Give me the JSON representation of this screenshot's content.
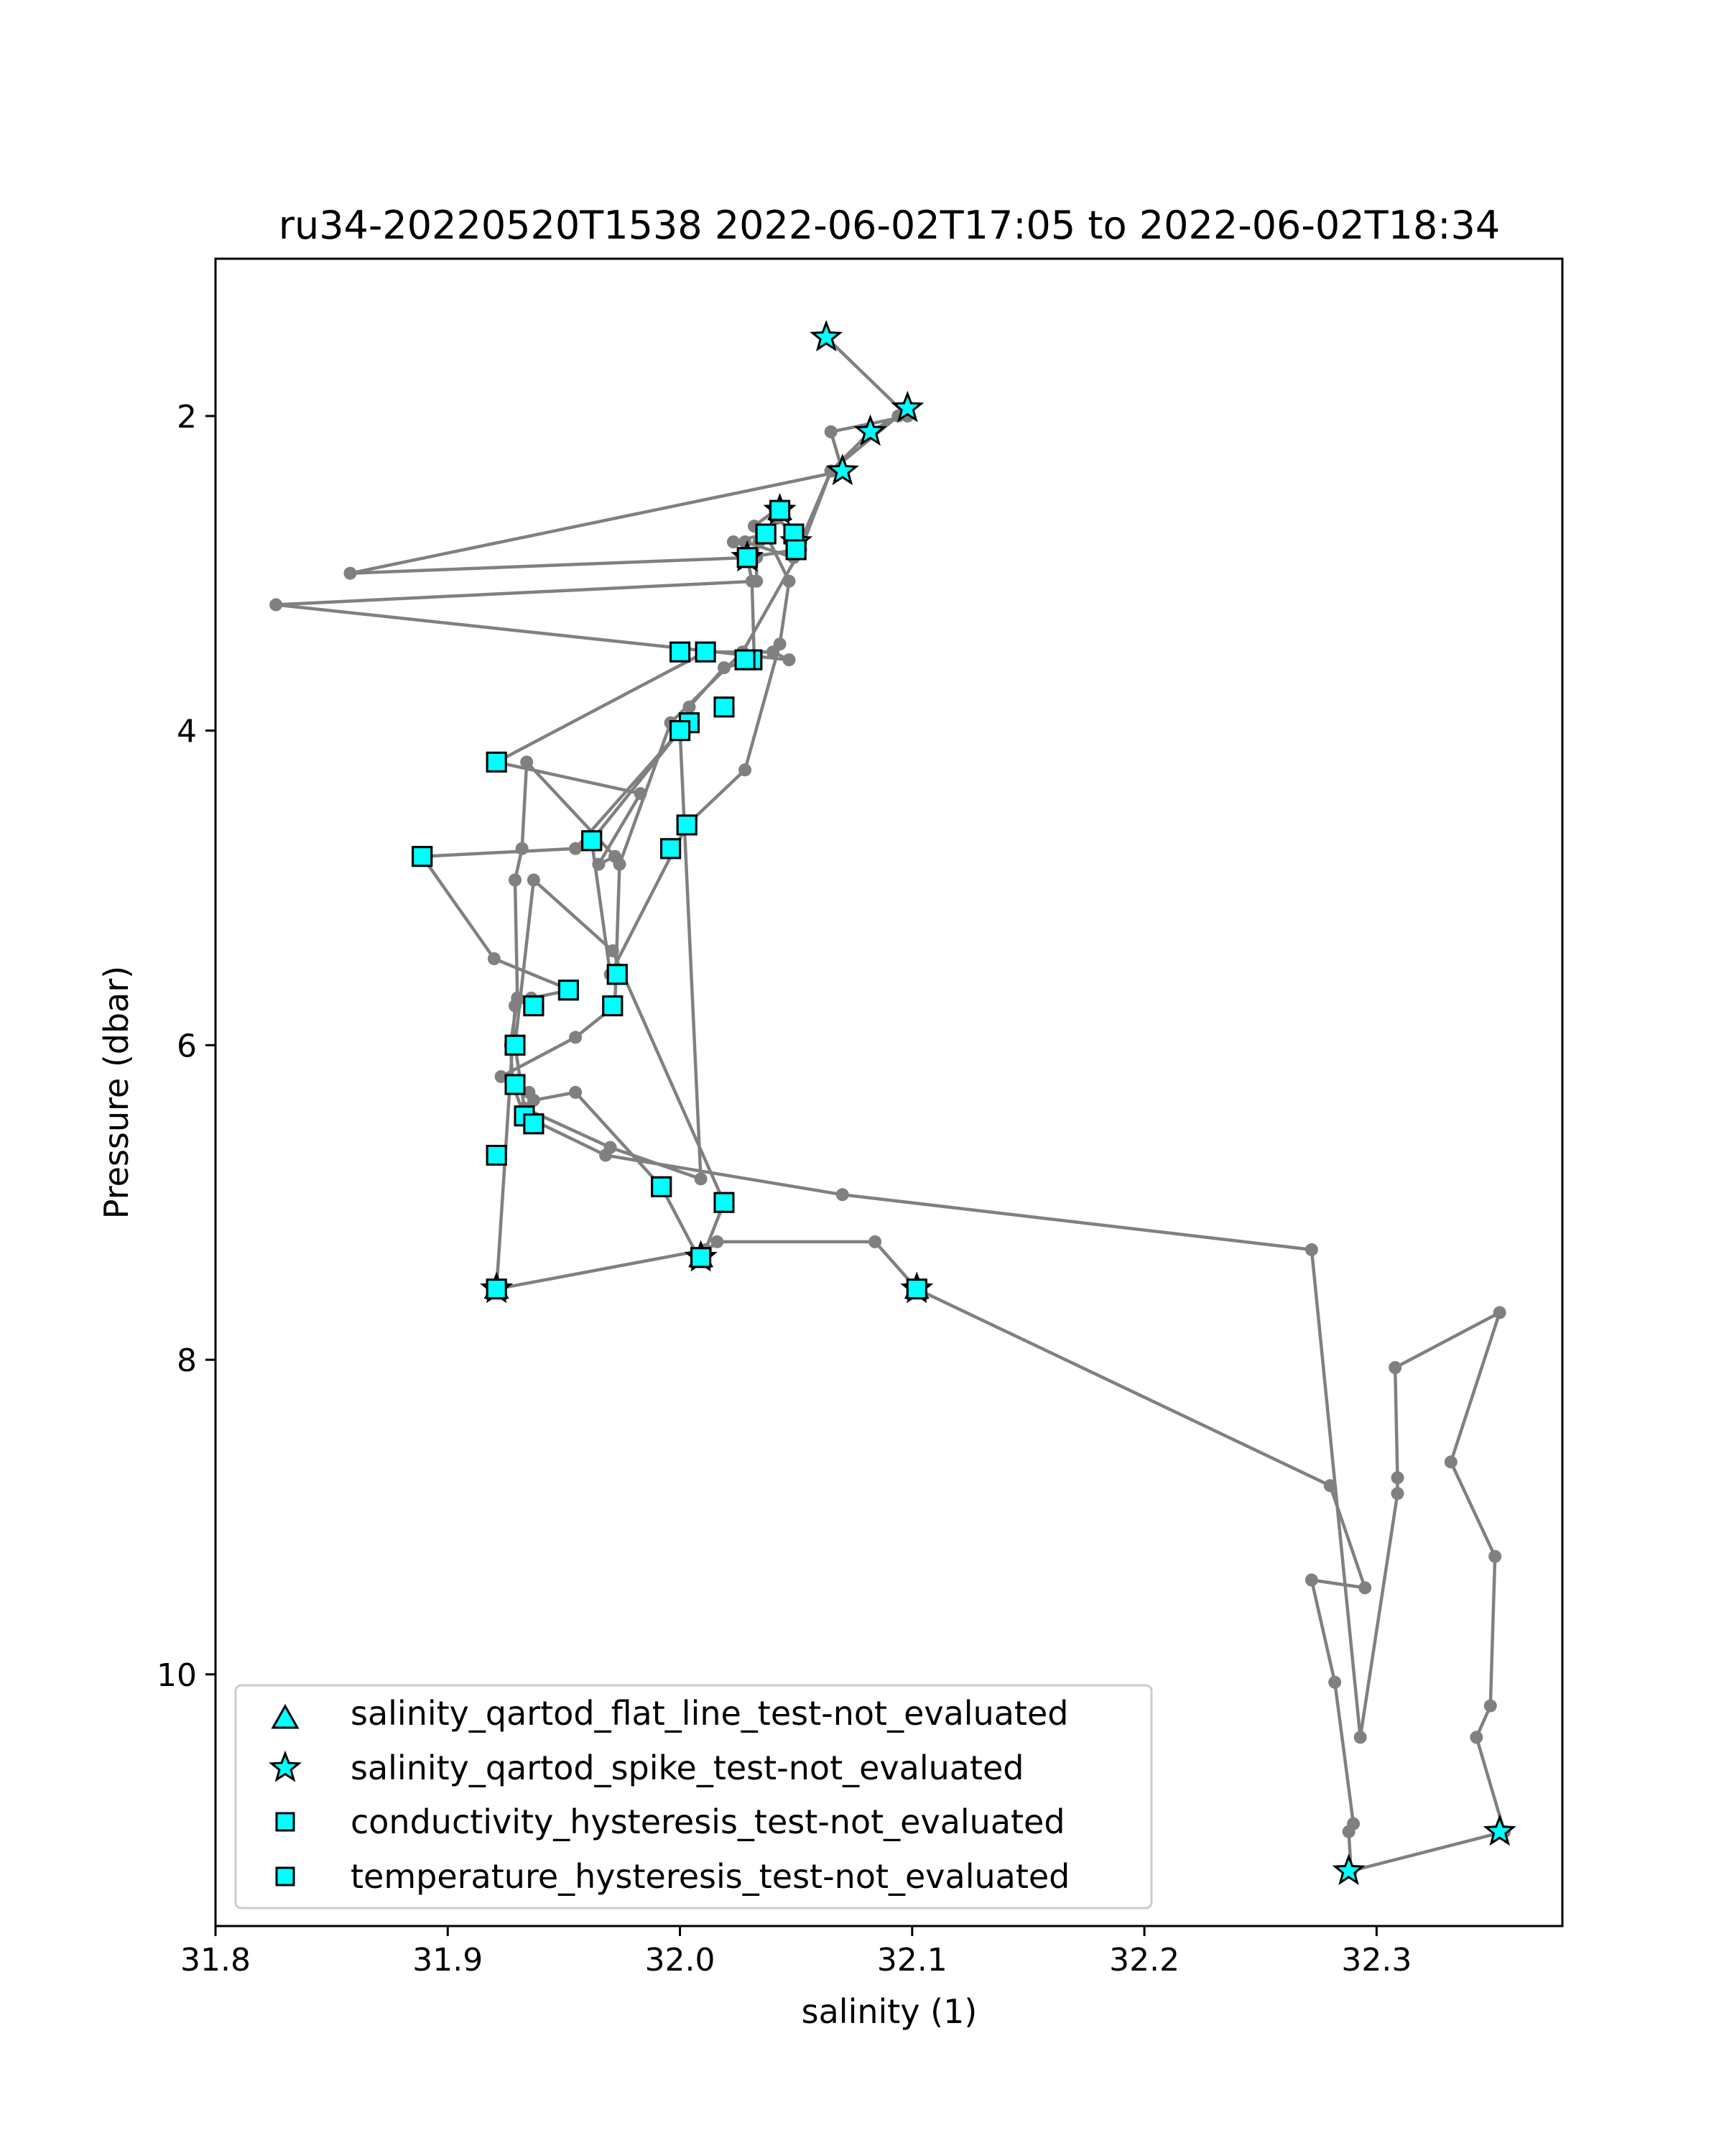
{
  "chart_data": {
    "type": "scatter",
    "title": "ru34-20220520T1538 2022-06-02T17:05 to 2022-06-02T18:34",
    "xlabel": "salinity (1)",
    "ylabel": "Pressure (dbar)",
    "xlim": [
      31.8,
      32.38
    ],
    "ylim": [
      11.6,
      1.0
    ],
    "y_inverted": true,
    "x_ticks": [
      31.8,
      31.9,
      32.0,
      32.1,
      32.2,
      32.3
    ],
    "x_tick_labels": [
      "31.8",
      "31.9",
      "32.0",
      "32.1",
      "32.2",
      "32.3"
    ],
    "y_ticks": [
      2,
      4,
      6,
      8,
      10
    ],
    "y_tick_labels": [
      "2",
      "4",
      "6",
      "8",
      "10"
    ],
    "grid": false,
    "legend_position": "lower-left",
    "line_color": "#808080",
    "marker_fill": "#00ffff",
    "marker_edge": "#000000",
    "profile": {
      "x": [
        32.063,
        32.098,
        32.065,
        32.07,
        31.858,
        32.03,
        32.042,
        32.052,
        32.05,
        32.029,
        32.031,
        32.032,
        32.019,
        32.004,
        32.0,
        31.955,
        31.889,
        31.92,
        31.953,
        31.936,
        31.929,
        31.921,
        32.011,
        32.019,
        31.971,
        31.937,
        31.929,
        31.933,
        31.97,
        32.009,
        32.0,
        31.962,
        31.97,
        32.003,
        32.028,
        32.043,
        32.047,
        32.037,
        32.023,
        32.028,
        32.049,
        32.065,
        32.094,
        32.082,
        32.065,
        32.052,
        32.027,
        31.996,
        31.974,
        31.972,
        31.955,
        31.923,
        31.935,
        31.937,
        31.955,
        31.992,
        32.008,
        32.016,
        32.084,
        32.102,
        32.28,
        32.295,
        32.272,
        32.282,
        32.29,
        32.288,
        32.289,
        32.355,
        32.343,
        32.349,
        32.351,
        32.332,
        32.353,
        32.308,
        32.309,
        32.309,
        32.293,
        32.272,
        32.07,
        31.968,
        31.933,
        31.928,
        31.927,
        31.93,
        31.929,
        31.932,
        31.934,
        31.972,
        31.965,
        31.983,
        31.921,
        32.011,
        32.04,
        32.047,
        31.826,
        32.033,
        32.033,
        32.034,
        32.032,
        32.041
      ],
      "y": [
        1.5,
        2.0,
        2.1,
        2.35,
        3.0,
        2.9,
        2.65,
        2.8,
        2.85,
        2.9,
        3.05,
        3.55,
        3.6,
        3.85,
        4.0,
        4.75,
        4.8,
        5.45,
        5.65,
        5.7,
        5.75,
        7.55,
        7.3,
        7.0,
        5.4,
        4.95,
        6.0,
        6.4,
        6.65,
        6.85,
        4.0,
        4.7,
        5.55,
        4.6,
        4.25,
        3.45,
        3.05,
        2.75,
        2.8,
        2.8,
        2.9,
        2.35,
        2.0,
        2.1,
        2.35,
        2.85,
        3.5,
        3.95,
        4.85,
        5.75,
        5.95,
        6.2,
        6.3,
        6.35,
        6.3,
        6.9,
        7.35,
        7.25,
        7.25,
        7.55,
        8.8,
        9.45,
        9.4,
        10.05,
        10.95,
        11.0,
        11.25,
        11.0,
        10.4,
        10.2,
        9.25,
        8.65,
        7.7,
        8.05,
        8.75,
        8.85,
        10.4,
        7.3,
        6.95,
        6.7,
        6.45,
        6.25,
        6.0,
        5.7,
        4.95,
        4.75,
        4.2,
        4.8,
        4.85,
        4.4,
        4.2,
        3.5,
        3.5,
        3.55,
        3.2,
        3.05,
        2.9,
        2.8,
        2.7,
        2.6
      ],
      "conductivity_flags": [
        [
          32.043,
          2.6
        ],
        [
          32.049,
          2.75
        ],
        [
          32.05,
          2.85
        ],
        [
          32.037,
          2.75
        ],
        [
          32.029,
          2.9
        ],
        [
          32.0,
          3.5
        ],
        [
          32.011,
          3.5
        ],
        [
          32.031,
          3.55
        ],
        [
          32.028,
          3.55
        ],
        [
          32.019,
          3.85
        ],
        [
          32.004,
          3.95
        ],
        [
          32.0,
          4.0
        ],
        [
          31.921,
          4.2
        ],
        [
          31.889,
          4.8
        ],
        [
          31.962,
          4.7
        ],
        [
          32.003,
          4.6
        ],
        [
          31.996,
          4.75
        ],
        [
          31.973,
          5.55
        ],
        [
          31.952,
          5.65
        ],
        [
          31.937,
          5.75
        ],
        [
          31.971,
          5.75
        ],
        [
          31.929,
          6.0
        ],
        [
          31.929,
          6.25
        ],
        [
          31.933,
          6.45
        ],
        [
          31.937,
          6.5
        ],
        [
          31.921,
          6.7
        ],
        [
          31.992,
          6.9
        ],
        [
          32.019,
          7.0
        ],
        [
          32.009,
          7.35
        ],
        [
          31.921,
          7.55
        ],
        [
          32.102,
          7.55
        ]
      ],
      "temperature_flags": [
        [
          32.043,
          2.6
        ],
        [
          32.049,
          2.75
        ],
        [
          32.05,
          2.85
        ],
        [
          32.037,
          2.75
        ],
        [
          32.029,
          2.9
        ],
        [
          32.0,
          3.5
        ],
        [
          32.011,
          3.5
        ],
        [
          32.031,
          3.55
        ],
        [
          32.028,
          3.55
        ],
        [
          32.019,
          3.85
        ],
        [
          32.004,
          3.95
        ],
        [
          32.0,
          4.0
        ],
        [
          31.921,
          4.2
        ],
        [
          31.889,
          4.8
        ],
        [
          31.962,
          4.7
        ],
        [
          32.003,
          4.6
        ],
        [
          31.996,
          4.75
        ],
        [
          31.973,
          5.55
        ],
        [
          31.952,
          5.65
        ],
        [
          31.937,
          5.75
        ],
        [
          31.971,
          5.75
        ],
        [
          31.929,
          6.0
        ],
        [
          31.929,
          6.25
        ],
        [
          31.933,
          6.45
        ],
        [
          31.937,
          6.5
        ],
        [
          31.921,
          6.7
        ],
        [
          31.992,
          6.9
        ],
        [
          32.019,
          7.0
        ],
        [
          32.009,
          7.35
        ],
        [
          31.921,
          7.55
        ],
        [
          32.102,
          7.55
        ]
      ],
      "spike_flags": [
        [
          32.063,
          1.5
        ],
        [
          32.098,
          1.95
        ],
        [
          32.082,
          2.1
        ],
        [
          32.07,
          2.35
        ],
        [
          32.043,
          2.6
        ],
        [
          32.05,
          2.8
        ],
        [
          32.029,
          2.9
        ],
        [
          31.921,
          7.55
        ],
        [
          32.009,
          7.35
        ],
        [
          32.102,
          7.55
        ],
        [
          32.288,
          11.25
        ],
        [
          32.353,
          11.0
        ]
      ],
      "flatline_flags": [
        [
          32.043,
          2.6
        ],
        [
          31.921,
          7.55
        ],
        [
          32.009,
          7.35
        ],
        [
          32.102,
          7.55
        ]
      ]
    },
    "legend": [
      {
        "marker": "triangle",
        "label": "salinity_qartod_flat_line_test-not_evaluated"
      },
      {
        "marker": "star",
        "label": "salinity_qartod_spike_test-not_evaluated"
      },
      {
        "marker": "square",
        "label": "conductivity_hysteresis_test-not_evaluated"
      },
      {
        "marker": "square",
        "label": "temperature_hysteresis_test-not_evaluated"
      }
    ]
  }
}
